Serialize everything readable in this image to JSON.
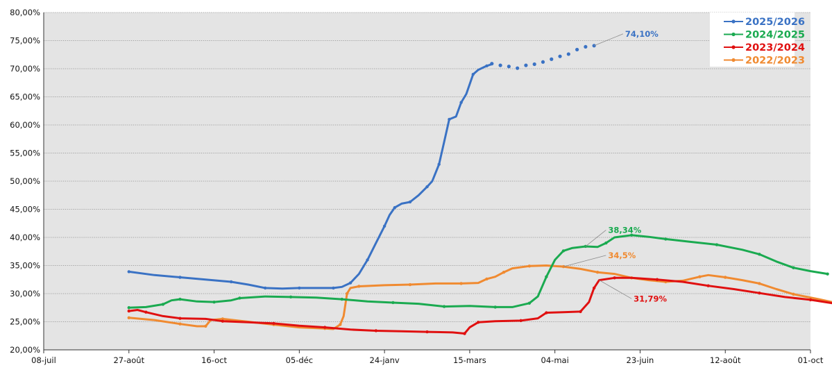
{
  "chart_data": {
    "type": "line",
    "title": "",
    "xlabel": "",
    "ylabel": "",
    "x_axis": {
      "ticks": [
        "08-juil",
        "27-août",
        "16-oct",
        "05-déc",
        "24-janv",
        "15-mars",
        "04-mai",
        "23-juin",
        "12-août",
        "01-oct"
      ],
      "range_days": [
        0,
        450
      ]
    },
    "y_axis": {
      "ticks": [
        "20,00%",
        "25,00%",
        "30,00%",
        "35,00%",
        "40,00%",
        "45,00%",
        "50,00%",
        "55,00%",
        "60,00%",
        "65,00%",
        "70,00%",
        "75,00%",
        "80,00%"
      ],
      "ylim": [
        20,
        80
      ]
    },
    "grid": "horizontal dotted",
    "legend_position": "top-right",
    "colors": {
      "plot_background": "#e4e4e4",
      "gridline": "#888888",
      "axis": "#333333"
    },
    "series": [
      {
        "name": "2025/2026",
        "color": "#3a72c4",
        "points": [
          [
            50,
            33.9
          ],
          [
            65,
            33.3
          ],
          [
            80,
            32.9
          ],
          [
            95,
            32.5
          ],
          [
            110,
            32.1
          ],
          [
            120,
            31.6
          ],
          [
            130,
            31.0
          ],
          [
            140,
            30.9
          ],
          [
            150,
            31.0
          ],
          [
            160,
            31.0
          ],
          [
            170,
            31.0
          ],
          [
            175,
            31.2
          ],
          [
            180,
            31.9
          ],
          [
            185,
            33.5
          ],
          [
            190,
            36.0
          ],
          [
            195,
            39.0
          ],
          [
            200,
            42.0
          ],
          [
            203,
            44.0
          ],
          [
            206,
            45.3
          ],
          [
            210,
            46.0
          ],
          [
            215,
            46.3
          ],
          [
            220,
            47.5
          ],
          [
            225,
            49.0
          ],
          [
            228,
            50.0
          ],
          [
            232,
            53.0
          ],
          [
            235,
            57.0
          ],
          [
            238,
            61.0
          ],
          [
            242,
            61.5
          ],
          [
            245,
            64.0
          ],
          [
            248,
            65.5
          ],
          [
            252,
            69.0
          ],
          [
            255,
            69.8
          ],
          [
            260,
            70.5
          ],
          [
            263,
            70.8
          ]
        ],
        "dots": [
          [
            263,
            70.9
          ],
          [
            268,
            70.6
          ],
          [
            273,
            70.4
          ],
          [
            278,
            70.1
          ],
          [
            283,
            70.6
          ],
          [
            288,
            70.8
          ],
          [
            293,
            71.2
          ],
          [
            298,
            71.7
          ],
          [
            303,
            72.2
          ],
          [
            308,
            72.6
          ],
          [
            313,
            73.4
          ],
          [
            318,
            73.9
          ],
          [
            323,
            74.1
          ]
        ],
        "end_label": "74,10%"
      },
      {
        "name": "2024/2025",
        "color": "#1aaa50",
        "points": [
          [
            50,
            27.5
          ],
          [
            60,
            27.6
          ],
          [
            70,
            28.1
          ],
          [
            75,
            28.8
          ],
          [
            80,
            29.0
          ],
          [
            90,
            28.6
          ],
          [
            100,
            28.5
          ],
          [
            110,
            28.8
          ],
          [
            115,
            29.2
          ],
          [
            130,
            29.5
          ],
          [
            145,
            29.4
          ],
          [
            160,
            29.3
          ],
          [
            175,
            29.0
          ],
          [
            190,
            28.6
          ],
          [
            205,
            28.4
          ],
          [
            220,
            28.2
          ],
          [
            235,
            27.7
          ],
          [
            250,
            27.8
          ],
          [
            265,
            27.6
          ],
          [
            275,
            27.6
          ],
          [
            285,
            28.3
          ],
          [
            290,
            29.5
          ],
          [
            295,
            33.0
          ],
          [
            300,
            36.0
          ],
          [
            305,
            37.6
          ],
          [
            310,
            38.1
          ],
          [
            318,
            38.4
          ],
          [
            325,
            38.3
          ],
          [
            330,
            39.0
          ],
          [
            335,
            40.0
          ],
          [
            345,
            40.4
          ],
          [
            355,
            40.1
          ],
          [
            365,
            39.7
          ],
          [
            380,
            39.2
          ],
          [
            395,
            38.7
          ],
          [
            410,
            37.8
          ],
          [
            420,
            37.0
          ],
          [
            430,
            35.7
          ],
          [
            440,
            34.6
          ],
          [
            450,
            34.0
          ],
          [
            460,
            33.5
          ]
        ],
        "end_label": "38,34%"
      },
      {
        "name": "2023/2024",
        "color": "#e01010",
        "points": [
          [
            50,
            26.9
          ],
          [
            55,
            27.1
          ],
          [
            60,
            26.7
          ],
          [
            70,
            26.0
          ],
          [
            80,
            25.6
          ],
          [
            95,
            25.5
          ],
          [
            105,
            25.1
          ],
          [
            120,
            24.9
          ],
          [
            135,
            24.7
          ],
          [
            150,
            24.3
          ],
          [
            165,
            24.0
          ],
          [
            180,
            23.6
          ],
          [
            195,
            23.4
          ],
          [
            210,
            23.3
          ],
          [
            225,
            23.2
          ],
          [
            240,
            23.1
          ],
          [
            247,
            22.9
          ],
          [
            250,
            24.0
          ],
          [
            255,
            24.9
          ],
          [
            265,
            25.1
          ],
          [
            280,
            25.2
          ],
          [
            290,
            25.6
          ],
          [
            295,
            26.6
          ],
          [
            305,
            26.7
          ],
          [
            315,
            26.8
          ],
          [
            320,
            28.5
          ],
          [
            323,
            31.0
          ],
          [
            326,
            32.4
          ],
          [
            335,
            32.8
          ],
          [
            345,
            32.8
          ],
          [
            360,
            32.5
          ],
          [
            375,
            32.1
          ],
          [
            390,
            31.4
          ],
          [
            405,
            30.8
          ],
          [
            420,
            30.1
          ],
          [
            435,
            29.4
          ],
          [
            450,
            28.9
          ],
          [
            465,
            28.2
          ],
          [
            480,
            27.6
          ],
          [
            485,
            27.5
          ]
        ],
        "end_label": "31,79%"
      },
      {
        "name": "2022/2023",
        "color": "#f08a30",
        "points": [
          [
            50,
            25.7
          ],
          [
            65,
            25.3
          ],
          [
            80,
            24.6
          ],
          [
            90,
            24.2
          ],
          [
            95,
            24.2
          ],
          [
            98,
            25.3
          ],
          [
            105,
            25.5
          ],
          [
            120,
            25.0
          ],
          [
            135,
            24.5
          ],
          [
            150,
            24.0
          ],
          [
            165,
            23.8
          ],
          [
            170,
            23.7
          ],
          [
            174,
            24.5
          ],
          [
            176,
            26.0
          ],
          [
            178,
            30.0
          ],
          [
            180,
            31.0
          ],
          [
            185,
            31.3
          ],
          [
            200,
            31.5
          ],
          [
            215,
            31.6
          ],
          [
            230,
            31.8
          ],
          [
            245,
            31.8
          ],
          [
            255,
            31.9
          ],
          [
            260,
            32.6
          ],
          [
            265,
            33.0
          ],
          [
            270,
            33.8
          ],
          [
            275,
            34.5
          ],
          [
            285,
            34.9
          ],
          [
            295,
            35.0
          ],
          [
            305,
            34.8
          ],
          [
            315,
            34.4
          ],
          [
            325,
            33.8
          ],
          [
            335,
            33.5
          ],
          [
            345,
            32.8
          ],
          [
            355,
            32.4
          ],
          [
            365,
            32.1
          ],
          [
            375,
            32.3
          ],
          [
            385,
            33.0
          ],
          [
            390,
            33.3
          ],
          [
            400,
            32.9
          ],
          [
            410,
            32.4
          ],
          [
            420,
            31.8
          ],
          [
            430,
            30.8
          ],
          [
            440,
            29.9
          ],
          [
            455,
            29.0
          ],
          [
            470,
            28.0
          ],
          [
            485,
            27.0
          ]
        ],
        "end_label": "34,5%"
      }
    ]
  }
}
